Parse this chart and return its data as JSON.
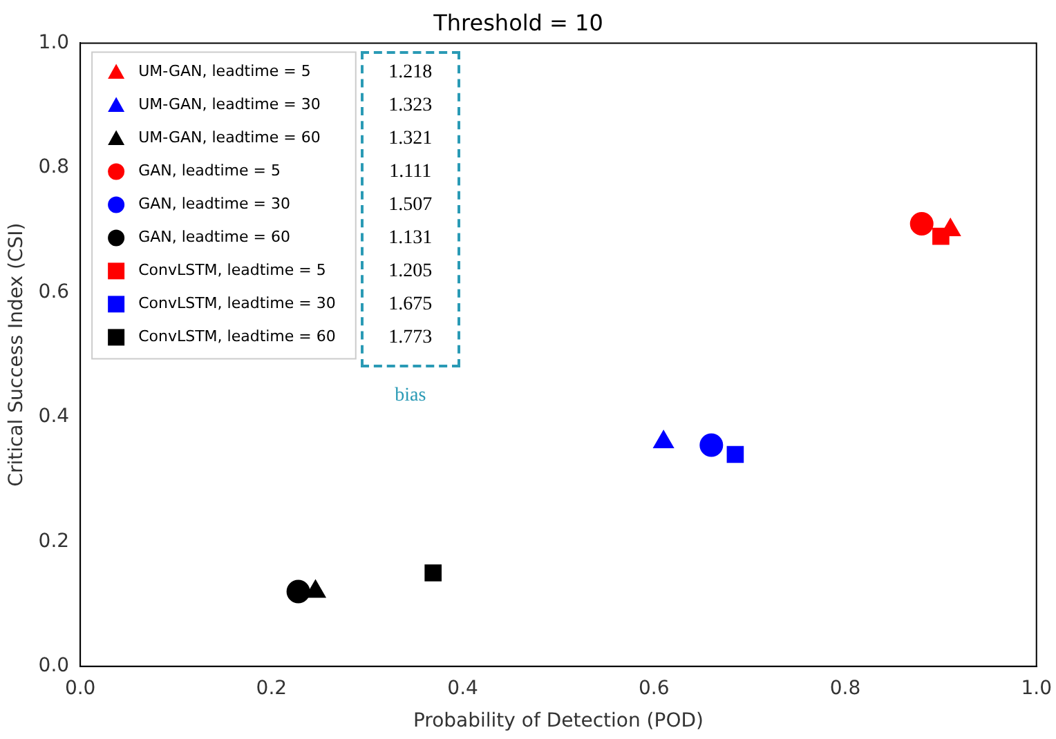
{
  "chart_data": {
    "type": "scatter",
    "title": "Threshold = 10",
    "xlabel": "Probability of Detection (POD)",
    "ylabel": "Critical Success Index (CSI)",
    "xlim": [
      0,
      1
    ],
    "ylim": [
      0,
      1
    ],
    "xticks": [
      {
        "value": 0,
        "label": "0.0"
      },
      0.2,
      0.4,
      0.6,
      0.8,
      {
        "value": 1,
        "label": "1.0"
      }
    ],
    "yticks": [
      {
        "value": 0,
        "label": "0.0"
      },
      0.2,
      0.4,
      0.6,
      0.8,
      {
        "value": 1,
        "label": "1.0"
      }
    ],
    "grid": false,
    "legend": "top left",
    "series": [
      {
        "name": "UM-GAN, leadtime = 5",
        "color": "#ff0000",
        "marker": "triangle",
        "x": [
          0.91
        ],
        "values": [
          0.7
        ]
      },
      {
        "name": "UM-GAN, leadtime = 30",
        "color": "#0000ff",
        "marker": "triangle",
        "x": [
          0.61
        ],
        "values": [
          0.36
        ]
      },
      {
        "name": "UM-GAN, leadtime = 60",
        "color": "#000000",
        "marker": "triangle",
        "x": [
          0.246
        ],
        "values": [
          0.12
        ]
      },
      {
        "name": "GAN, leadtime = 5",
        "color": "#ff0000",
        "marker": "circle",
        "x": [
          0.88
        ],
        "values": [
          0.71
        ]
      },
      {
        "name": "GAN, leadtime = 30",
        "color": "#0000ff",
        "marker": "circle",
        "x": [
          0.66
        ],
        "values": [
          0.355
        ]
      },
      {
        "name": "GAN, leadtime = 60",
        "color": "#000000",
        "marker": "circle",
        "x": [
          0.228
        ],
        "values": [
          0.12
        ]
      },
      {
        "name": "ConvLSTM, leadtime = 5",
        "color": "#ff0000",
        "marker": "square",
        "x": [
          0.9
        ],
        "values": [
          0.69
        ]
      },
      {
        "name": "ConvLSTM, leadtime = 30",
        "color": "#0000ff",
        "marker": "square",
        "x": [
          0.685
        ],
        "values": [
          0.34
        ]
      },
      {
        "name": "ConvLSTM, leadtime = 60",
        "color": "#000000",
        "marker": "square",
        "x": [
          0.369
        ],
        "values": [
          0.15
        ]
      }
    ],
    "annotations": [
      "1.218",
      "1.323",
      "1.321",
      "1.111",
      "1.507",
      "1.131",
      "1.205",
      "1.675",
      "1.773",
      "bias"
    ]
  }
}
